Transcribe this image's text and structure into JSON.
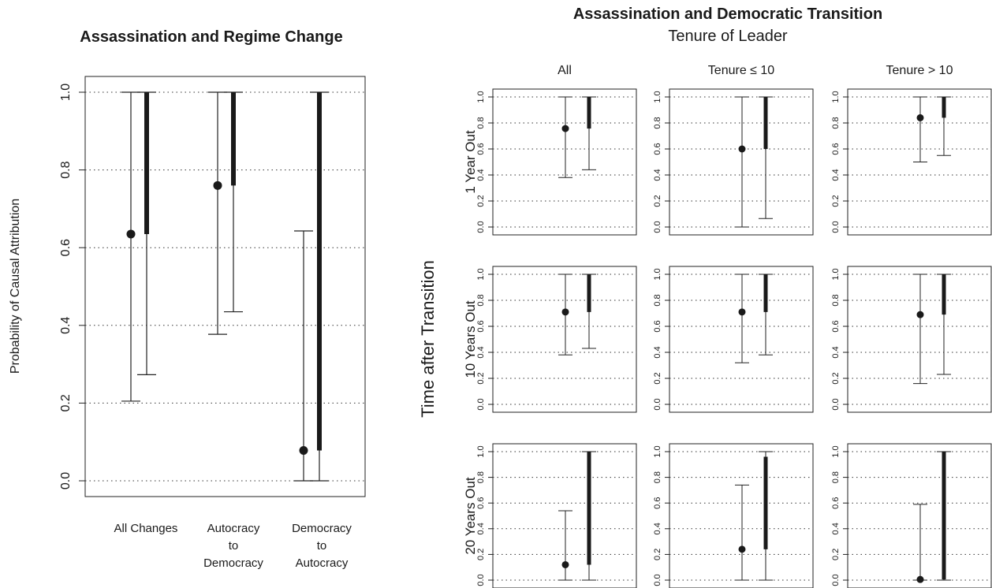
{
  "left_chart": {
    "title": "Assassination and Regime Change",
    "ylabel": "Probability of Causal Attribution",
    "yticks": [
      "0.0",
      "0.2",
      "0.4",
      "0.6",
      "0.8",
      "1.0"
    ],
    "categories": [
      {
        "lines": [
          "All Changes"
        ]
      },
      {
        "lines": [
          "Autocracy",
          "to",
          "Democracy"
        ]
      },
      {
        "lines": [
          "Democracy",
          "to",
          "Autocracy"
        ]
      }
    ]
  },
  "right_panel": {
    "title": "Assassination and Democratic Transition",
    "subtitle": "Tenure of Leader",
    "ylabel": "Time after Transition",
    "columns": [
      "All",
      "Tenure  ≤ 10",
      "Tenure  > 10"
    ],
    "rows": [
      "1 Year Out",
      "10 Years Out",
      "20 Years Out"
    ],
    "yticks": [
      "0.0",
      "0.2",
      "0.4",
      "0.6",
      "0.8",
      "1.0"
    ]
  },
  "chart_data": [
    {
      "type": "interval",
      "title": "Assassination and Regime Change",
      "ylabel": "Probability of Causal Attribution",
      "ylim": [
        0,
        1
      ],
      "grid": true,
      "categories": [
        "All Changes",
        "Autocracy to Democracy",
        "Democracy to Autocracy"
      ],
      "point": [
        0.635,
        0.76,
        0.078
      ],
      "thin_interval": [
        [
          0.205,
          1.0
        ],
        [
          0.377,
          1.0
        ],
        [
          0.0,
          0.643
        ]
      ],
      "thick_interval": [
        [
          0.635,
          1.0
        ],
        [
          0.76,
          1.0
        ],
        [
          0.078,
          1.0
        ]
      ],
      "whisker": [
        [
          0.273,
          1.0
        ],
        [
          0.435,
          1.0
        ],
        [
          0.0,
          1.0
        ]
      ]
    },
    {
      "type": "interval",
      "title": "Assassination and Democratic Transition",
      "subtitle": "Tenure of Leader",
      "ylabel": "Time after Transition",
      "ylim": [
        0,
        1
      ],
      "grid": true,
      "columns": [
        "All",
        "Tenure ≤ 10",
        "Tenure > 10"
      ],
      "rows": [
        "1 Year Out",
        "10 Years Out",
        "20 Years Out"
      ],
      "panels": [
        [
          {
            "point": 0.757,
            "thin": [
              0.38,
              1.0
            ],
            "thick": [
              0.757,
              1.0
            ],
            "whisker": [
              0.44,
              1.0
            ]
          },
          {
            "point": 0.6,
            "thin": [
              0.0,
              1.0
            ],
            "thick": [
              0.6,
              1.0
            ],
            "whisker": [
              0.065,
              1.0
            ]
          },
          {
            "point": 0.84,
            "thin": [
              0.5,
              1.0
            ],
            "thick": [
              0.84,
              1.0
            ],
            "whisker": [
              0.55,
              1.0
            ]
          }
        ],
        [
          {
            "point": 0.71,
            "thin": [
              0.38,
              1.0
            ],
            "thick": [
              0.71,
              1.0
            ],
            "whisker": [
              0.43,
              1.0
            ]
          },
          {
            "point": 0.71,
            "thin": [
              0.32,
              1.0
            ],
            "thick": [
              0.71,
              1.0
            ],
            "whisker": [
              0.38,
              1.0
            ]
          },
          {
            "point": 0.69,
            "thin": [
              0.16,
              1.0
            ],
            "thick": [
              0.69,
              1.0
            ],
            "whisker": [
              0.23,
              1.0
            ]
          }
        ],
        [
          {
            "point": 0.12,
            "thin": [
              0.0,
              0.54
            ],
            "thick": [
              0.12,
              1.0
            ],
            "whisker": [
              0.0,
              1.0
            ]
          },
          {
            "point": 0.24,
            "thin": [
              0.0,
              0.74
            ],
            "thick": [
              0.24,
              0.96
            ],
            "whisker": [
              0.0,
              1.0
            ]
          },
          {
            "point": 0.005,
            "thin": [
              0.0,
              0.59
            ],
            "thick": [
              0.005,
              1.0
            ],
            "whisker": [
              0.0,
              1.0
            ]
          }
        ]
      ]
    }
  ]
}
